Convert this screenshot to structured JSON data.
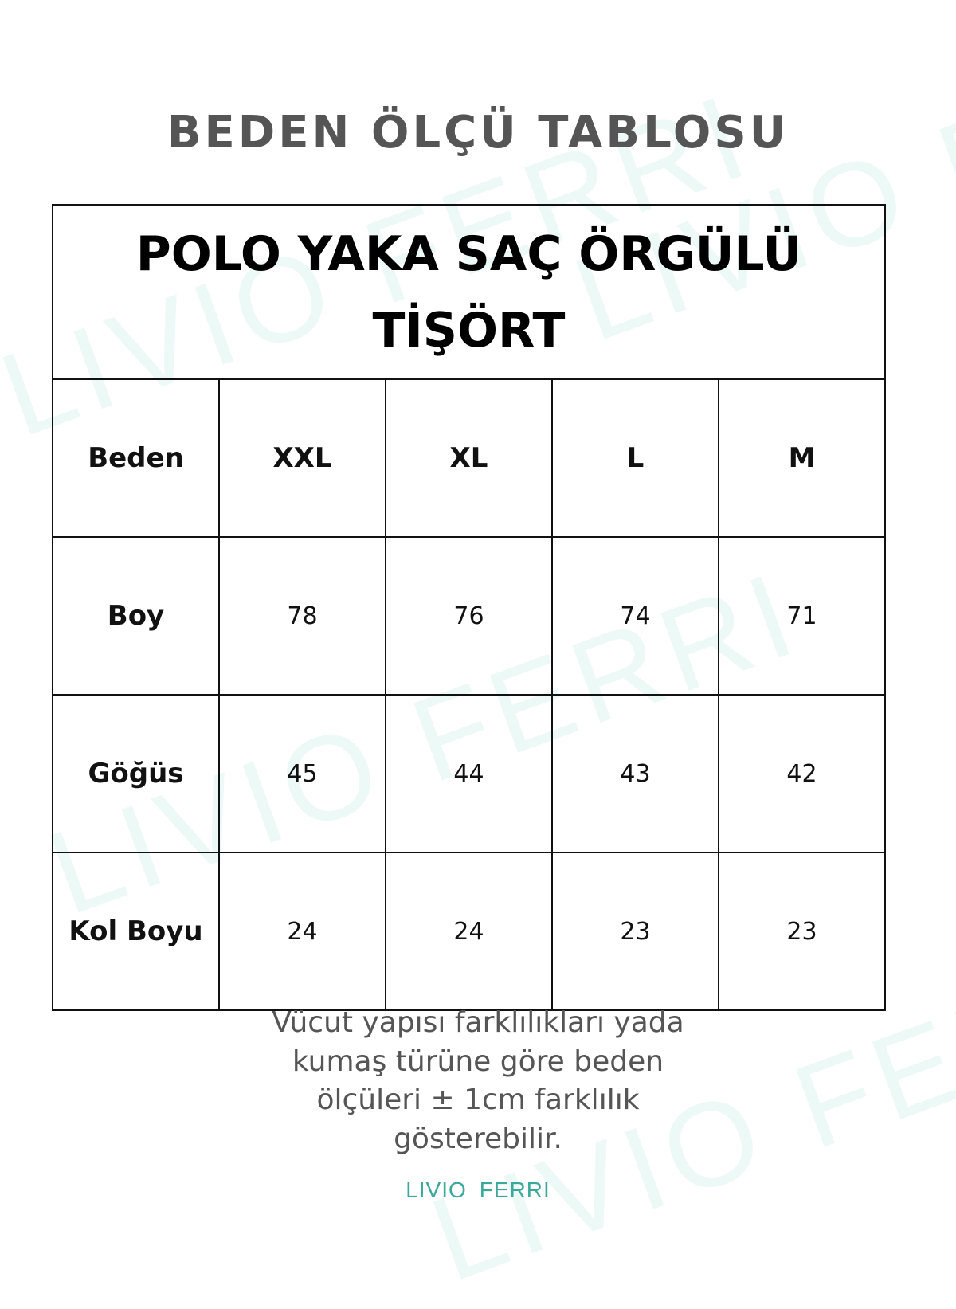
{
  "watermark": "LIVIO FERRI",
  "page_title": "BEDEN ÖLÇÜ TABLOSU",
  "product_title": "POLO YAKA SAÇ ÖRGÜLÜ TİŞÖRT",
  "table": {
    "header": [
      "Beden",
      "XXL",
      "XL",
      "L",
      "M"
    ],
    "rows": [
      {
        "label": "Boy",
        "values": [
          "78",
          "76",
          "74",
          "71"
        ]
      },
      {
        "label": "Göğüs",
        "values": [
          "45",
          "44",
          "43",
          "42"
        ]
      },
      {
        "label": "Kol Boyu",
        "values": [
          "24",
          "24",
          "23",
          "23"
        ]
      }
    ]
  },
  "note": "Vücut yapısı farklılıkları yada kumaş türüne göre beden ölçüleri  ± 1cm farklılık gösterebilir.",
  "logo": {
    "word1": "LIVIO",
    "word2": "FERRI",
    "color": "#3aa89a"
  },
  "colors": {
    "title": "#555555",
    "watermark": "#6ecdbe"
  }
}
